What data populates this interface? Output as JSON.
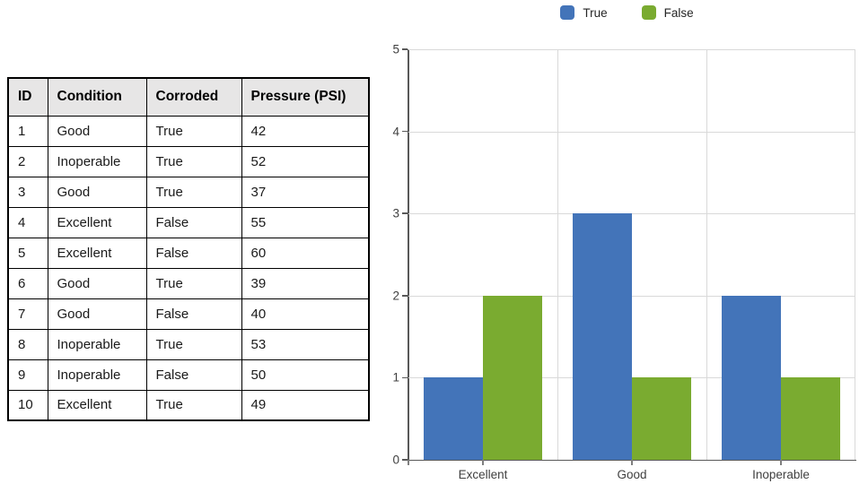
{
  "table": {
    "headers": [
      "ID",
      "Condition",
      "Corroded",
      "Pressure (PSI)"
    ],
    "rows": [
      [
        "1",
        "Good",
        "True",
        "42"
      ],
      [
        "2",
        "Inoperable",
        "True",
        "52"
      ],
      [
        "3",
        "Good",
        "True",
        "37"
      ],
      [
        "4",
        "Excellent",
        "False",
        "55"
      ],
      [
        "5",
        "Excellent",
        "False",
        "60"
      ],
      [
        "6",
        "Good",
        "True",
        "39"
      ],
      [
        "7",
        "Good",
        "False",
        "40"
      ],
      [
        "8",
        "Inoperable",
        "True",
        "53"
      ],
      [
        "9",
        "Inoperable",
        "False",
        "50"
      ],
      [
        "10",
        "Excellent",
        "True",
        "49"
      ]
    ],
    "header_bg": "#E7E6E6"
  },
  "chart_data": {
    "type": "bar",
    "title": "",
    "categories": [
      "Excellent",
      "Good",
      "Inoperable"
    ],
    "series": [
      {
        "name": "True",
        "color": "#4374B9",
        "values": [
          1,
          3,
          2
        ]
      },
      {
        "name": "False",
        "color": "#7AAB30",
        "values": [
          2,
          1,
          1
        ]
      }
    ],
    "xlabel": "",
    "ylabel": "",
    "ylim": [
      0,
      5
    ],
    "yticks": [
      0,
      1,
      2,
      3,
      4,
      5
    ],
    "grid": true,
    "legend_position": "top",
    "grid_color": "#D9D9D9",
    "axis_color": "#595959",
    "label_color": "#404040"
  }
}
